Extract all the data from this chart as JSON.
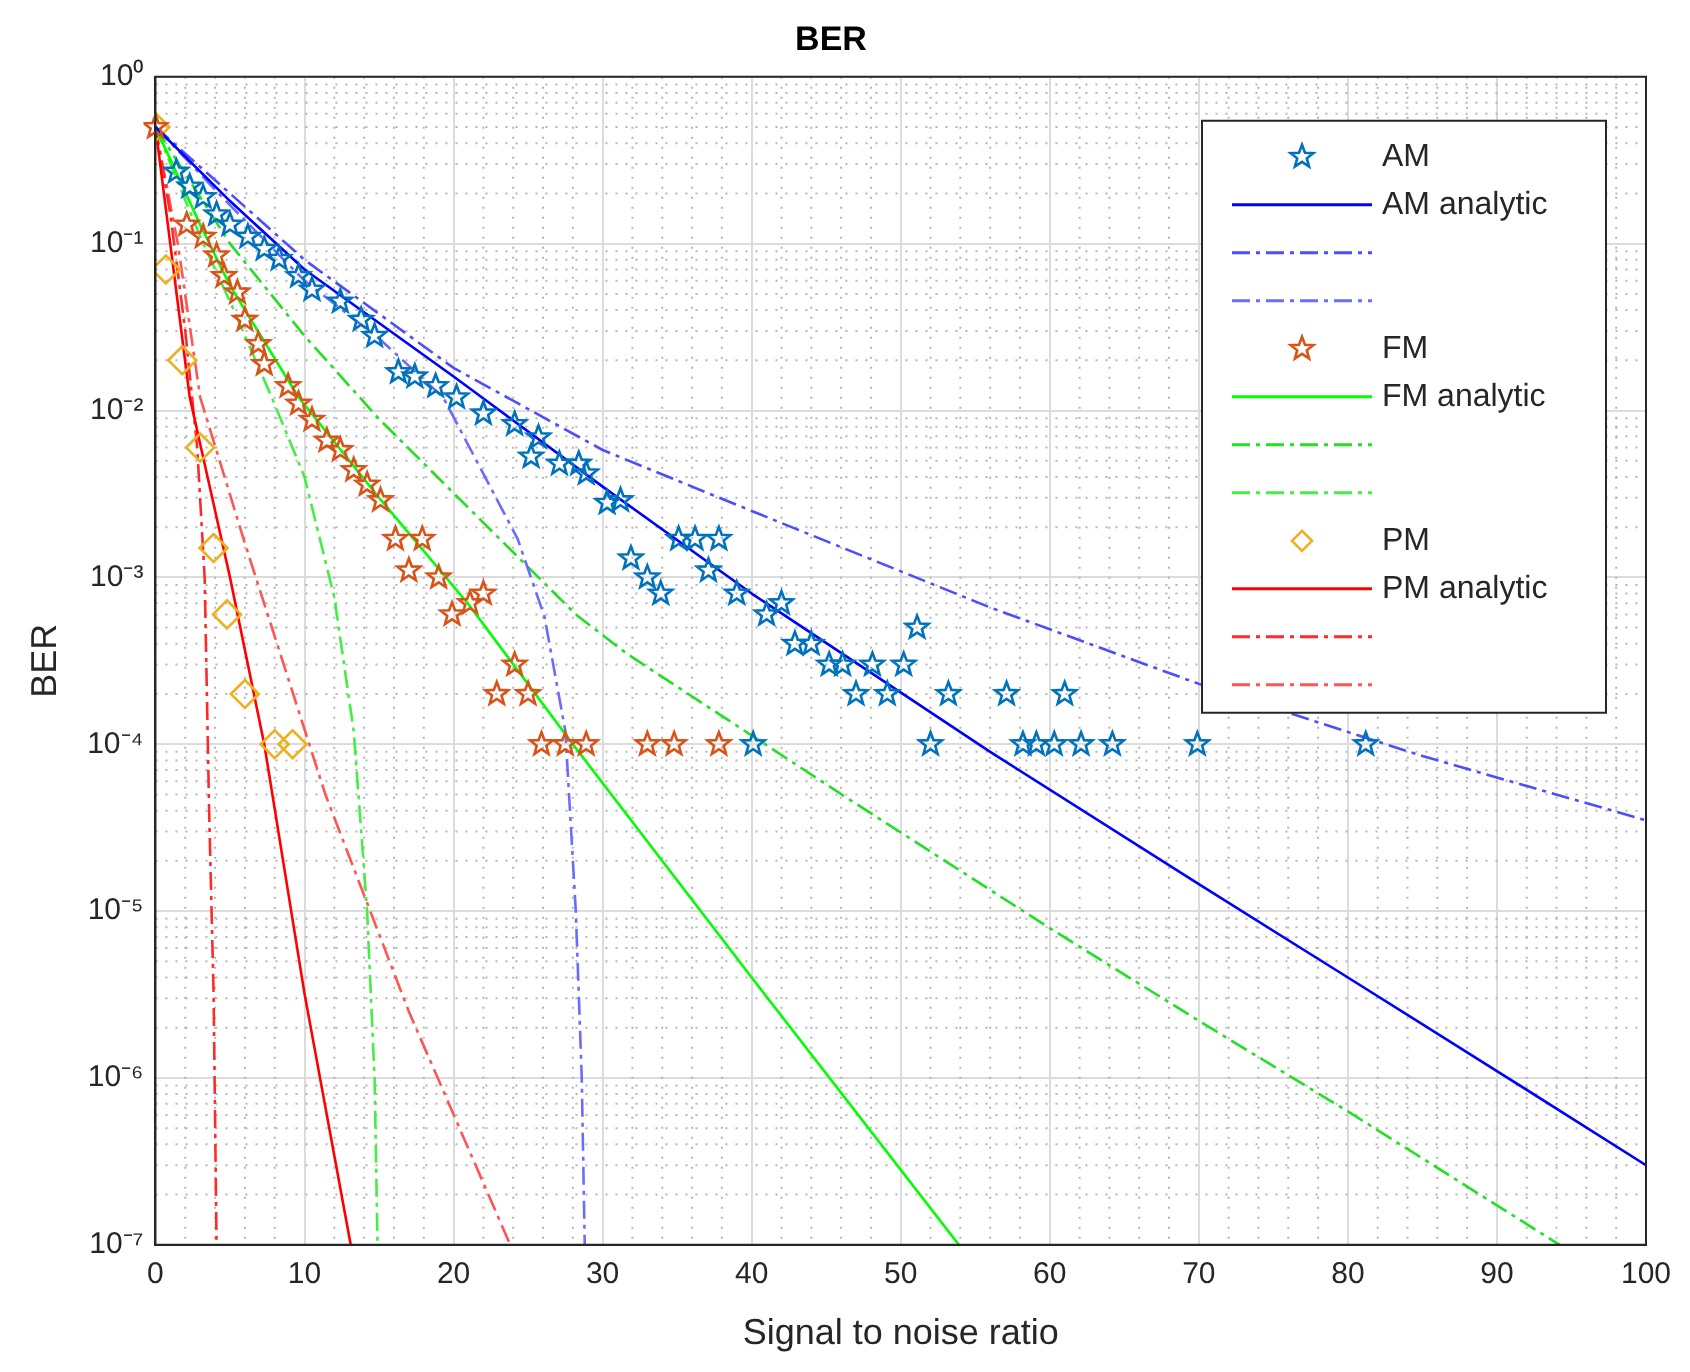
{
  "chart_data": {
    "type": "scatter",
    "title": "BER",
    "xlabel": "Signal to noise ratio",
    "ylabel": "BER",
    "log": "y",
    "grid": true,
    "legend": "top right",
    "xlim": [
      0,
      100
    ],
    "xticks": [
      0,
      10,
      20,
      30,
      40,
      50,
      60,
      70,
      80,
      90,
      100
    ],
    "ylim": [
      1e-07,
      1
    ],
    "yticks": [
      {
        "value": 1e-07,
        "label": "10⁻⁷"
      },
      {
        "value": 1e-06,
        "label": "10⁻⁶"
      },
      {
        "value": 1e-05,
        "label": "10⁻⁵"
      },
      {
        "value": 0.0001,
        "label": "10⁻⁴"
      },
      {
        "value": 0.001,
        "label": "10⁻³"
      },
      {
        "value": 0.01,
        "label": "10⁻²"
      },
      {
        "value": 0.1,
        "label": "10⁻¹"
      },
      {
        "value": 1,
        "label": "10⁰"
      }
    ],
    "series": [
      {
        "name": "AM",
        "type": "scatter",
        "marker": "star",
        "color": "#0072bd",
        "x": [
          1.4,
          2.3,
          3.2,
          4.1,
          5,
          6.2,
          7.3,
          8.3,
          9.6,
          10.5,
          12.4,
          13.8,
          14.7,
          16.3,
          17.4,
          18.8,
          20.2,
          22,
          24.1,
          25.2,
          25.7,
          27.1,
          28.4,
          28.9,
          30.3,
          31.2,
          31.9,
          33,
          33.9,
          35.1,
          36.2,
          37.1,
          37.8,
          39,
          40.1,
          41,
          42,
          42.9,
          44,
          45.2,
          46.1,
          47,
          48.1,
          49.1,
          50.2,
          51.1,
          52,
          53.2,
          57.1,
          58.2,
          59.1,
          60.3,
          61,
          62.1,
          64.2,
          69.9,
          81.2
        ],
        "values": [
          0.27,
          0.22,
          0.19,
          0.15,
          0.13,
          0.11,
          0.093,
          0.081,
          0.064,
          0.053,
          0.045,
          0.035,
          0.028,
          0.017,
          0.016,
          0.014,
          0.012,
          0.0096,
          0.0083,
          0.0053,
          0.0069,
          0.0048,
          0.0048,
          0.0042,
          0.0028,
          0.0029,
          0.0013,
          0.001,
          0.0008,
          0.0017,
          0.0017,
          0.0011,
          0.0017,
          0.0008,
          0.0001,
          0.0006,
          0.0007,
          0.0004,
          0.0004,
          0.0003,
          0.0003,
          0.0002,
          0.0003,
          0.0002,
          0.0003,
          0.0005,
          0.0001,
          0.0002,
          0.0002,
          0.0001,
          0.0001,
          0.0001,
          0.0002,
          0.0001,
          0.0001,
          0.0001,
          0.0001
        ]
      },
      {
        "name": "AM analytic",
        "type": "line",
        "marker": "none",
        "line_style": "solid",
        "color": "#0000ff",
        "x": [
          0,
          5,
          10,
          20,
          30,
          40,
          56,
          70,
          80,
          90,
          100
        ],
        "values": [
          0.5,
          0.18,
          0.07,
          0.016,
          0.0035,
          0.0008,
          9e-05,
          1.45e-05,
          4e-06,
          1.1e-06,
          3e-07
        ]
      },
      {
        "type": "line",
        "marker": "none",
        "line_style": "dashed",
        "color": "#4d4dff",
        "x": [
          0,
          5,
          10,
          20,
          30,
          40,
          56,
          70,
          85,
          100
        ],
        "values": [
          0.5,
          0.2,
          0.08,
          0.018,
          0.0058,
          0.0025,
          0.00066,
          0.00023,
          8.5e-05,
          3.5e-05
        ]
      },
      {
        "type": "line",
        "marker": "none",
        "line_style": "dashed",
        "color": "#6b6bff",
        "x": [
          0,
          5,
          10,
          15,
          19.3,
          24.3,
          26.1,
          27.5,
          28.2,
          28.6,
          28.8
        ],
        "values": [
          0.5,
          0.17,
          0.06,
          0.027,
          0.012,
          0.0017,
          0.00058,
          0.00012,
          1e-05,
          1e-06,
          1e-07
        ]
      },
      {
        "name": "FM",
        "type": "scatter",
        "marker": "star",
        "color": "#d95319",
        "x": [
          0,
          2.1,
          3.2,
          4.1,
          4.6,
          5.5,
          6,
          6.9,
          7.3,
          8.9,
          9.6,
          10.5,
          11.5,
          12.4,
          13.3,
          14.2,
          15.1,
          16.1,
          17,
          17.9,
          19,
          19.9,
          21.1,
          22,
          22.9,
          24.1,
          25,
          25.9,
          27.5,
          28.9,
          33,
          34.8,
          37.8
        ],
        "values": [
          0.5,
          0.13,
          0.11,
          0.085,
          0.064,
          0.051,
          0.035,
          0.025,
          0.019,
          0.014,
          0.011,
          0.0088,
          0.0066,
          0.0058,
          0.0044,
          0.0036,
          0.0029,
          0.0017,
          0.0011,
          0.0017,
          0.001,
          0.0006,
          0.0007,
          0.0008,
          0.0002,
          0.0003,
          0.0002,
          0.0001,
          0.0001,
          0.0001,
          0.0001,
          0.0001,
          0.0001
        ]
      },
      {
        "name": "FM analytic",
        "type": "line",
        "marker": "none",
        "line_style": "solid",
        "color": "#00ff00",
        "x": [
          0,
          3,
          5,
          9.6,
          15,
          21,
          28,
          40,
          53.9
        ],
        "values": [
          0.5,
          0.13,
          0.056,
          0.012,
          0.003,
          0.00069,
          0.0001,
          4e-06,
          1e-07
        ]
      },
      {
        "type": "line",
        "marker": "none",
        "line_style": "dashed",
        "color": "#22e022",
        "x": [
          0,
          5,
          10,
          15,
          20,
          28.2,
          31.6,
          46.5,
          60,
          70,
          80,
          94.2
        ],
        "values": [
          0.5,
          0.1,
          0.028,
          0.0089,
          0.0032,
          0.0006,
          0.00035,
          4.7e-05,
          7.9e-06,
          2.2e-06,
          6.3e-07,
          1e-07
        ]
      },
      {
        "type": "line",
        "marker": "none",
        "line_style": "dashed",
        "color": "#44ee44",
        "x": [
          0,
          3,
          5,
          7.8,
          10,
          12,
          13.3,
          14.2,
          14.7,
          14.9
        ],
        "values": [
          0.5,
          0.11,
          0.045,
          0.012,
          0.004,
          0.00076,
          0.00012,
          1e-05,
          1e-06,
          1e-07
        ]
      },
      {
        "name": "PM",
        "type": "scatter",
        "marker": "diamond",
        "color": "#edb120",
        "x": [
          0,
          0.7,
          1.8,
          3,
          3.9,
          4.8,
          6,
          8,
          9.2
        ],
        "values": [
          0.5,
          0.07,
          0.02,
          0.006,
          0.0015,
          0.0006,
          0.0002,
          0.0001,
          0.0001
        ]
      },
      {
        "name": "PM analytic",
        "type": "line",
        "marker": "none",
        "line_style": "solid",
        "color": "#ff0000",
        "x": [
          0,
          2.3,
          5,
          7.3,
          10,
          13.1
        ],
        "values": [
          0.5,
          0.012,
          0.001,
          0.0001,
          3.2e-06,
          1e-07
        ]
      },
      {
        "type": "line",
        "marker": "none",
        "line_style": "dashed",
        "color": "#ff2a2a",
        "x": [
          0,
          1,
          2,
          2.8,
          3.3,
          3.6,
          3.9,
          4.1
        ],
        "values": [
          0.5,
          0.15,
          0.03,
          0.006,
          0.001,
          4e-05,
          3.2e-06,
          1e-07
        ]
      },
      {
        "type": "line",
        "marker": "none",
        "line_style": "dashed",
        "color": "#ff5555",
        "x": [
          0,
          1.5,
          3,
          6,
          11.4,
          17,
          23.8
        ],
        "values": [
          0.5,
          0.1,
          0.012,
          0.0016,
          5e-05,
          2.5e-06,
          1e-07
        ]
      }
    ]
  }
}
